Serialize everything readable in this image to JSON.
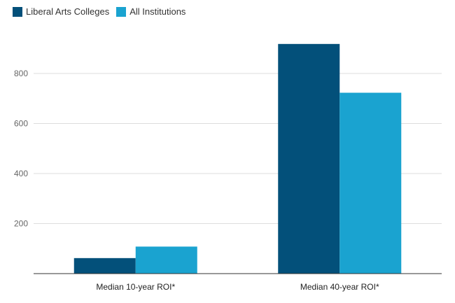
{
  "colors": {
    "series1": "#03507a",
    "series2": "#1aa3d0",
    "grid": "#dddddd",
    "axis": "#333333"
  },
  "chart_data": {
    "type": "bar",
    "title": "",
    "xlabel": "",
    "ylabel": "",
    "categories": [
      "Median 10-year ROI*",
      "Median 40-year ROI*"
    ],
    "series": [
      {
        "name": "Liberal Arts Colleges",
        "values": [
          62,
          918
        ]
      },
      {
        "name": "All Institutions",
        "values": [
          108,
          723
        ]
      }
    ],
    "ylim": [
      0,
      960
    ],
    "yticks": [
      200,
      400,
      600,
      800
    ],
    "grid": true,
    "legend_position": "top-left"
  }
}
